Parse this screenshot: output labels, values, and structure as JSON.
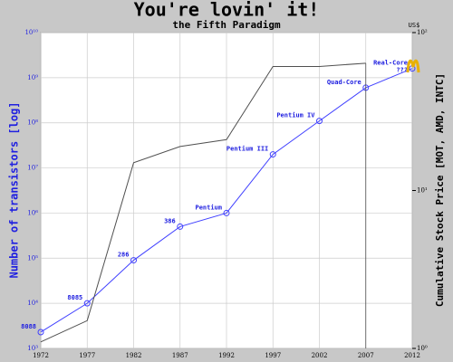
{
  "chart_data": {
    "type": "line",
    "title": "You're lovin' it!",
    "subtitle": "the Fifth Paradigm",
    "y_label": "Number of transistors [log]",
    "y2_label": "Cumulative Stock Price [MOT, AMD, INTC]",
    "y2_unit": "US$",
    "log_scale": true,
    "grid": true,
    "x": [
      1972,
      1977,
      1982,
      1987,
      1992,
      1997,
      2002,
      2007,
      2012
    ],
    "xlim": [
      1972,
      2012
    ],
    "xticks": [
      1972,
      1977,
      1982,
      1987,
      1992,
      1997,
      2002,
      2007,
      2012
    ],
    "ylim": [
      1000,
      10000000000
    ],
    "yticks": [
      {
        "value": 1000,
        "label": "10³"
      },
      {
        "value": 10000,
        "label": "10⁴"
      },
      {
        "value": 100000,
        "label": "10⁵"
      },
      {
        "value": 1000000,
        "label": "10⁶"
      },
      {
        "value": 10000000,
        "label": "10⁷"
      },
      {
        "value": 100000000,
        "label": "10⁸"
      },
      {
        "value": 1000000000,
        "label": "10⁹"
      },
      {
        "value": 10000000000,
        "label": "10¹⁰"
      }
    ],
    "y2lim": [
      1,
      100
    ],
    "y2ticks": [
      {
        "value": 1,
        "label": "10⁰"
      },
      {
        "value": 10,
        "label": "10¹"
      },
      {
        "value": 100,
        "label": "10²"
      }
    ],
    "annotations": [
      "???"
    ],
    "series": [
      {
        "color": "#4040ff",
        "values": [
          2300,
          10000,
          90000,
          500000,
          1000000,
          20000000,
          110000000,
          600000000,
          1600000000
        ],
        "point_labels": [
          "8088",
          "8085",
          "286",
          "386",
          "Pentium",
          "Pentium III",
          "Pentium IV",
          "Quad-Core",
          "Real-Core"
        ]
      },
      {
        "color": "#505050",
        "axis": "y2",
        "values": [
          1.1,
          1.5,
          15,
          19,
          21,
          61,
          61,
          64,
          null
        ]
      }
    ]
  }
}
